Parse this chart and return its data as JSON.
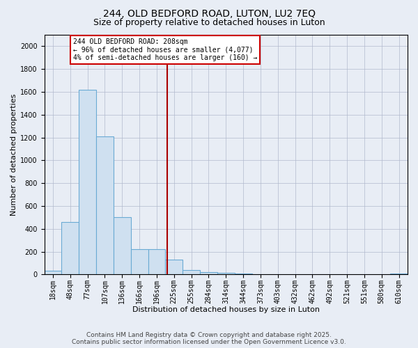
{
  "title1": "244, OLD BEDFORD ROAD, LUTON, LU2 7EQ",
  "title2": "Size of property relative to detached houses in Luton",
  "xlabel": "Distribution of detached houses by size in Luton",
  "ylabel": "Number of detached properties",
  "categories": [
    "18sqm",
    "48sqm",
    "77sqm",
    "107sqm",
    "136sqm",
    "166sqm",
    "196sqm",
    "225sqm",
    "255sqm",
    "284sqm",
    "314sqm",
    "344sqm",
    "373sqm",
    "403sqm",
    "432sqm",
    "462sqm",
    "492sqm",
    "521sqm",
    "551sqm",
    "580sqm",
    "610sqm"
  ],
  "values": [
    30,
    460,
    1620,
    1210,
    500,
    220,
    220,
    130,
    40,
    20,
    15,
    10,
    5,
    5,
    5,
    5,
    0,
    0,
    0,
    0,
    10
  ],
  "bar_color": "#cfe0f0",
  "bar_edge_color": "#6aaad4",
  "red_line_x": 6.62,
  "annotation_line1": "244 OLD BEDFORD ROAD: 208sqm",
  "annotation_line2": "← 96% of detached houses are smaller (4,077)",
  "annotation_line3": "4% of semi-detached houses are larger (160) →",
  "annotation_box_color": "#ffffff",
  "annotation_box_edge_color": "#cc0000",
  "ylim": [
    0,
    2100
  ],
  "yticks": [
    0,
    200,
    400,
    600,
    800,
    1000,
    1200,
    1400,
    1600,
    1800,
    2000
  ],
  "footer1": "Contains HM Land Registry data © Crown copyright and database right 2025.",
  "footer2": "Contains public sector information licensed under the Open Government Licence v3.0.",
  "bg_color": "#e8edf5",
  "plot_bg_color": "#e8edf5",
  "title1_fontsize": 10,
  "title2_fontsize": 9,
  "axis_label_fontsize": 8,
  "tick_fontsize": 7,
  "annotation_fontsize": 7,
  "footer_fontsize": 6.5,
  "grid_color": "#b0b8cc"
}
